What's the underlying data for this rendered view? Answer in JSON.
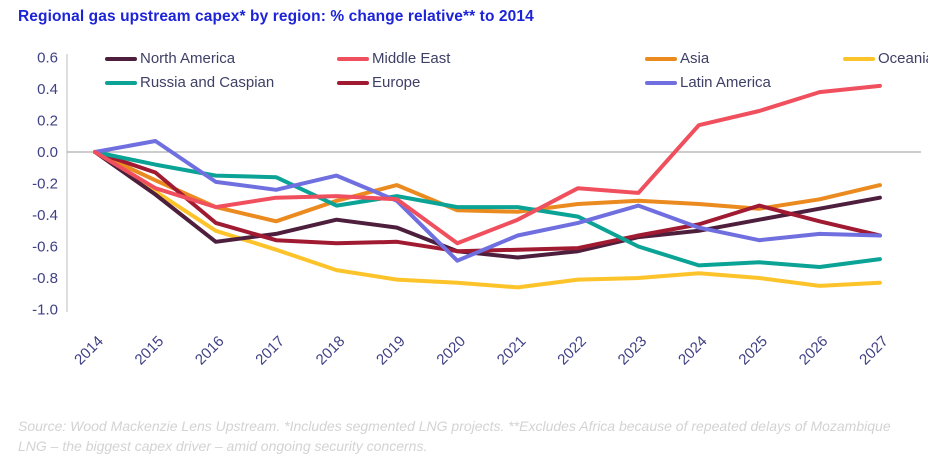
{
  "title": "Regional gas upstream capex* by region: % change relative** to 2014",
  "footer": "Source: Wood Mackenzie Lens Upstream.  *Includes segmented LNG projects. **Excludes Africa because of repeated delays of Mozambique LNG – the biggest capex driver – amid ongoing security concerns.",
  "colors": {
    "title_blue": "#1d24d8",
    "axis_label": "#3f4184",
    "legend_label": "#3e4066",
    "zero_line": "#9b9b9b",
    "axis_spine": "#c9c9c9",
    "footer_gray": "#d3d3d3"
  },
  "chart_data": {
    "type": "line",
    "title": "Regional gas upstream capex* by region: % change relative** to 2014",
    "categories": [
      "2014",
      "2015",
      "2016",
      "2017",
      "2018",
      "2019",
      "2020",
      "2021",
      "2022",
      "2023",
      "2024",
      "2025",
      "2026",
      "2027"
    ],
    "xlabel": "",
    "ylabel": "",
    "ylim": [
      -1.0,
      0.6
    ],
    "ytick_labels": [
      "0.6",
      "0.4",
      "0.2",
      "0.0",
      "-0.2",
      "-0.4",
      "-0.6",
      "-0.8",
      "-1.0"
    ],
    "ytick_values": [
      0.6,
      0.4,
      0.2,
      0.0,
      -0.2,
      -0.4,
      -0.6,
      -0.8,
      -1.0
    ],
    "grid": "zero-line-only",
    "legend_position": "top-inside",
    "legend_rows": [
      [
        "North America",
        "Middle East",
        "Asia",
        "Oceania"
      ],
      [
        "Russia and Caspian",
        "Europe",
        "Latin America"
      ]
    ],
    "series": [
      {
        "name": "North America",
        "color": "#4d1f3d",
        "values": [
          0.0,
          -0.27,
          -0.57,
          -0.52,
          -0.43,
          -0.48,
          -0.63,
          -0.67,
          -0.63,
          -0.54,
          -0.5,
          -0.43,
          -0.36,
          -0.29
        ]
      },
      {
        "name": "Middle East",
        "color": "#f04f5e",
        "values": [
          0.0,
          -0.23,
          -0.35,
          -0.29,
          -0.28,
          -0.3,
          -0.58,
          -0.43,
          -0.23,
          -0.26,
          0.17,
          0.26,
          0.38,
          0.42
        ]
      },
      {
        "name": "Asia",
        "color": "#ea8a1f",
        "values": [
          0.0,
          -0.18,
          -0.35,
          -0.44,
          -0.31,
          -0.21,
          -0.37,
          -0.38,
          -0.33,
          -0.31,
          -0.33,
          -0.36,
          -0.3,
          -0.21
        ]
      },
      {
        "name": "Oceania",
        "color": "#fdc32a",
        "values": [
          0.0,
          -0.25,
          -0.5,
          -0.62,
          -0.75,
          -0.81,
          -0.83,
          -0.86,
          -0.81,
          -0.8,
          -0.77,
          -0.8,
          -0.85,
          -0.83
        ]
      },
      {
        "name": "Russia and Caspian",
        "color": "#0aa396",
        "values": [
          0.0,
          -0.08,
          -0.15,
          -0.16,
          -0.34,
          -0.28,
          -0.35,
          -0.35,
          -0.41,
          -0.6,
          -0.72,
          -0.7,
          -0.73,
          -0.68
        ]
      },
      {
        "name": "Europe",
        "color": "#a01a32",
        "values": [
          0.0,
          -0.13,
          -0.45,
          -0.56,
          -0.58,
          -0.57,
          -0.63,
          -0.62,
          -0.61,
          -0.53,
          -0.46,
          -0.34,
          -0.44,
          -0.53
        ]
      },
      {
        "name": "Latin America",
        "color": "#6f6fe0",
        "values": [
          0.0,
          0.07,
          -0.19,
          -0.24,
          -0.15,
          -0.31,
          -0.69,
          -0.53,
          -0.45,
          -0.34,
          -0.48,
          -0.56,
          -0.52,
          -0.53
        ]
      }
    ],
    "draw_order": [
      "Oceania",
      "North America",
      "Asia",
      "Europe",
      "Russia and Caspian",
      "Latin America",
      "Middle East"
    ]
  }
}
